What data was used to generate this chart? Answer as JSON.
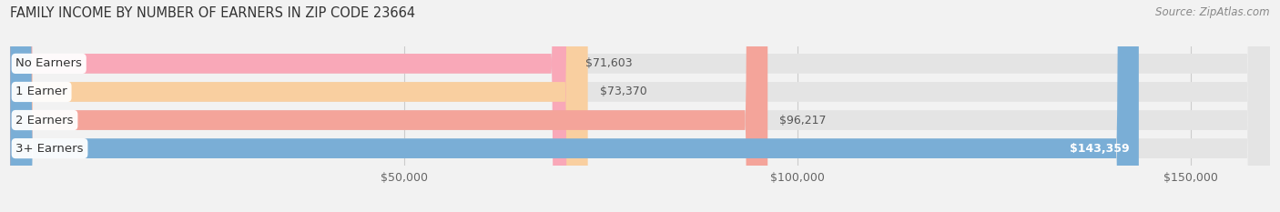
{
  "title": "FAMILY INCOME BY NUMBER OF EARNERS IN ZIP CODE 23664",
  "source": "Source: ZipAtlas.com",
  "categories": [
    "No Earners",
    "1 Earner",
    "2 Earners",
    "3+ Earners"
  ],
  "values": [
    71603,
    73370,
    96217,
    143359
  ],
  "bar_colors": [
    "#f9a8b8",
    "#f9cfa0",
    "#f4a49a",
    "#7aaed6"
  ],
  "value_labels": [
    "$71,603",
    "$73,370",
    "$96,217",
    "$143,359"
  ],
  "xmin": 0,
  "xmax": 160000,
  "xticks": [
    50000,
    100000,
    150000
  ],
  "xtick_labels": [
    "$50,000",
    "$100,000",
    "$150,000"
  ],
  "background_color": "#f2f2f2",
  "bar_bg_color": "#e4e4e4",
  "title_fontsize": 10.5,
  "source_fontsize": 8.5,
  "label_fontsize": 9.5,
  "value_fontsize": 9
}
